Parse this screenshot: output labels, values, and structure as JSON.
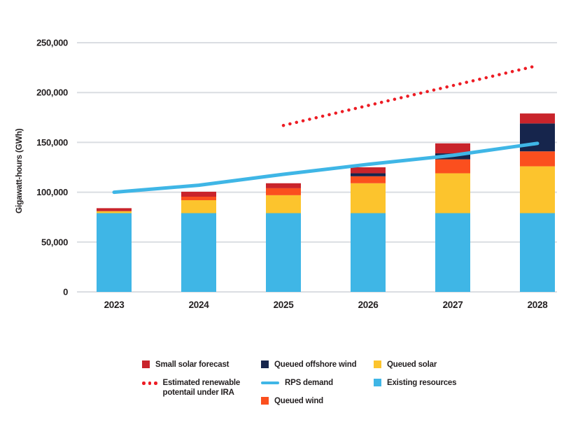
{
  "chart_data": {
    "type": "bar",
    "stacked": true,
    "title": "",
    "xlabel": "",
    "ylabel": "Gigawatt-hours (GWh)",
    "categories": [
      "2023",
      "2024",
      "2025",
      "2026",
      "2027",
      "2028"
    ],
    "series": [
      {
        "name": "Existing resources",
        "color": "#3fb6e6",
        "values": [
          79000,
          79000,
          79000,
          79000,
          79000,
          79000
        ]
      },
      {
        "name": "Queued solar",
        "color": "#fcc42d",
        "values": [
          2000,
          13000,
          18000,
          30000,
          40000,
          47000
        ]
      },
      {
        "name": "Queued wind",
        "color": "#fb4f1e",
        "values": [
          0,
          3500,
          7000,
          7000,
          14000,
          15000
        ]
      },
      {
        "name": "Queued offshore wind",
        "color": "#16254c",
        "values": [
          0,
          0,
          0,
          3000,
          6000,
          28000
        ]
      },
      {
        "name": "Small solar forecast",
        "color": "#c9242b",
        "values": [
          3000,
          5000,
          5000,
          6000,
          10000,
          10000
        ]
      }
    ],
    "lines": [
      {
        "name": "RPS demand",
        "style": "solid",
        "color": "#3fb6e6",
        "values": [
          100000,
          107000,
          118000,
          128000,
          137000,
          149000
        ]
      },
      {
        "name": "Estimated renewable potentail under IRA",
        "style": "dotted",
        "color": "#ed1c24",
        "values": [
          null,
          null,
          167000,
          187000,
          207000,
          227000
        ]
      }
    ],
    "ylim": [
      0,
      250000
    ],
    "yticks": [
      0,
      50000,
      100000,
      150000,
      200000,
      250000
    ],
    "ytick_labels": [
      "0",
      "50,000",
      "100,000",
      "150,000",
      "200,000",
      "250,000"
    ],
    "grid": true,
    "legend_position": "bottom"
  },
  "legend": {
    "columns": [
      {
        "items": [
          {
            "marker": "square",
            "color": "#c9242b",
            "label": "Small solar forecast"
          },
          {
            "marker": "dots",
            "color": "#ed1c24",
            "label": "Estimated renewable\npotentail under IRA"
          }
        ]
      },
      {
        "items": [
          {
            "marker": "square",
            "color": "#16254c",
            "label": "Queued offshore wind"
          },
          {
            "marker": "line",
            "color": "#3fb6e6",
            "label": "RPS demand"
          },
          {
            "marker": "square",
            "color": "#fb4f1e",
            "label": "Queued wind"
          }
        ]
      },
      {
        "items": [
          {
            "marker": "square",
            "color": "#fcc42d",
            "label": "Queued solar"
          },
          {
            "marker": "square",
            "color": "#3fb6e6",
            "label": "Existing resources"
          }
        ]
      }
    ]
  },
  "style": {
    "grid_color": "#dadde2",
    "text_color": "#231f20",
    "background": "#ffffff"
  }
}
